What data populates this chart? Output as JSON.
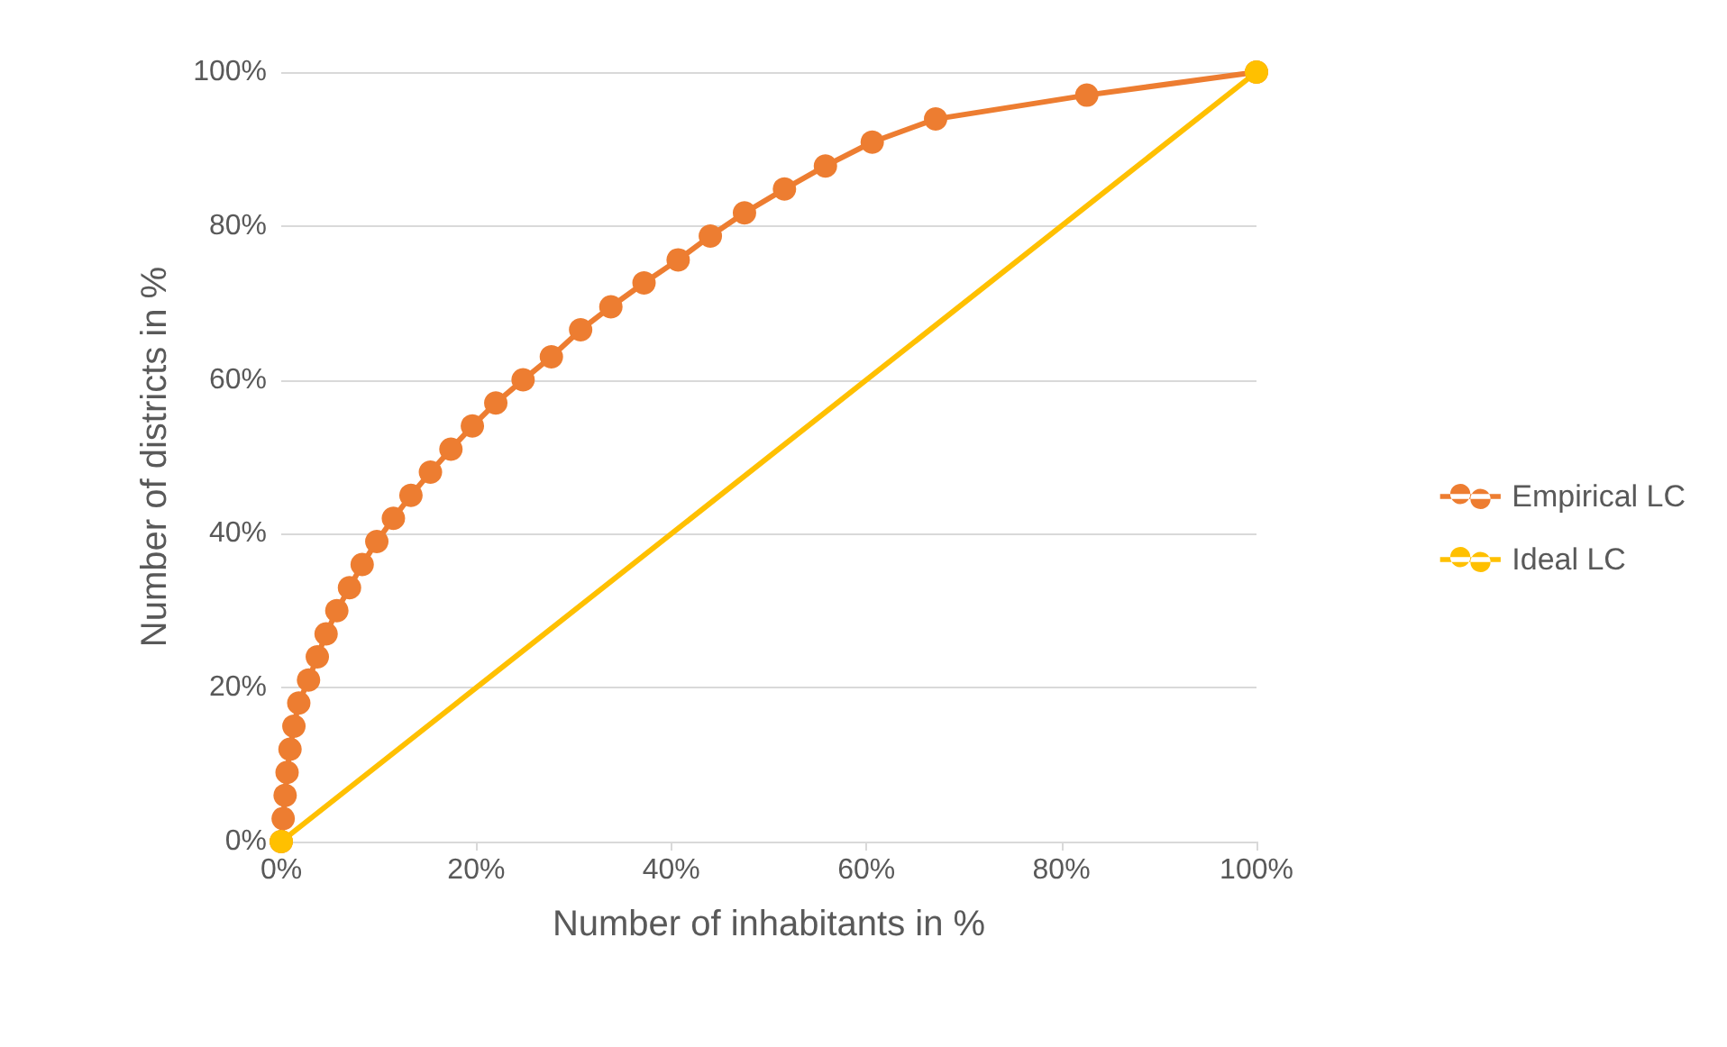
{
  "chart_data": {
    "type": "line",
    "xlabel": "Number of inhabitants in %",
    "ylabel": "Number of districts in %",
    "series": [
      {
        "name": "Empirical LC",
        "color": "#ed7d31",
        "x": [
          0,
          0.2,
          0.4,
          0.6,
          0.9,
          1.3,
          1.8,
          2.8,
          3.7,
          4.6,
          5.7,
          7,
          8.3,
          9.8,
          11.5,
          13.3,
          15.3,
          17.4,
          19.6,
          22,
          24.8,
          27.7,
          30.7,
          33.8,
          37.2,
          40.7,
          44,
          47.5,
          51.6,
          55.8,
          60.6,
          67.1,
          82.6,
          100
        ],
        "values": [
          0,
          3,
          6,
          9,
          12,
          15,
          18,
          21,
          24,
          27,
          30,
          33,
          36,
          39,
          42,
          45,
          48,
          51,
          54,
          57,
          60,
          63,
          66.5,
          69.5,
          72.6,
          75.6,
          78.7,
          81.7,
          84.8,
          87.8,
          90.9,
          93.9,
          97,
          100
        ]
      },
      {
        "name": "Ideal LC",
        "color": "#ffc000",
        "x": [
          0,
          100
        ],
        "values": [
          0,
          100
        ]
      }
    ],
    "xlim": [
      0,
      100
    ],
    "xticks": [
      {
        "value": 0,
        "label": "0%"
      },
      {
        "value": 20,
        "label": "20%"
      },
      {
        "value": 40,
        "label": "40%"
      },
      {
        "value": 60,
        "label": "60%"
      },
      {
        "value": 80,
        "label": "80%"
      },
      {
        "value": 100,
        "label": "100%"
      }
    ],
    "ylim": [
      0,
      100
    ],
    "yticks": [
      {
        "value": 0,
        "label": "0%"
      },
      {
        "value": 20,
        "label": "20%"
      },
      {
        "value": 40,
        "label": "40%"
      },
      {
        "value": 60,
        "label": "60%"
      },
      {
        "value": 80,
        "label": "80%"
      },
      {
        "value": 100,
        "label": "100%"
      }
    ],
    "grid": "y",
    "legend": "right",
    "marker": "circle",
    "line_style": "solid"
  }
}
